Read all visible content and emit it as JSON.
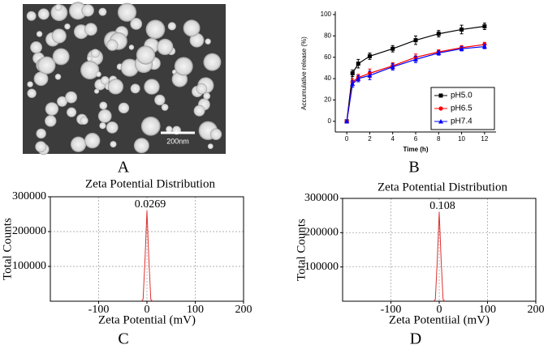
{
  "image": {
    "scale_bar_label": "200nm",
    "panel_label": "A"
  },
  "chart_data": [
    {
      "type": "line",
      "panel_label": "B",
      "y_label": "Accumulative release (%)",
      "x_label": "Time (h)",
      "x": [
        0,
        0.5,
        1,
        2,
        4,
        6,
        8,
        10,
        12
      ],
      "series": [
        {
          "name": "pH5.0",
          "color": "#000000",
          "marker": "square",
          "values": [
            0,
            45,
            54,
            61,
            68,
            76,
            82,
            86,
            89
          ],
          "errors": [
            0,
            3,
            4,
            3,
            3,
            4,
            3,
            4,
            3
          ]
        },
        {
          "name": "pH6.5",
          "color": "#ff0000",
          "marker": "circle",
          "values": [
            0,
            37,
            41,
            45,
            52,
            60,
            65,
            69,
            72
          ],
          "errors": [
            0,
            3,
            3,
            4,
            3,
            3,
            2,
            2,
            2
          ]
        },
        {
          "name": "pH7.4",
          "color": "#0000ff",
          "marker": "triangle",
          "values": [
            0,
            35,
            40,
            43,
            51,
            58,
            64,
            68,
            70
          ],
          "errors": [
            0,
            3,
            3,
            4,
            3,
            3,
            2,
            2,
            2
          ]
        }
      ],
      "xlim": [
        -1,
        13
      ],
      "xticks": [
        0,
        2,
        4,
        6,
        8,
        10,
        12
      ],
      "ylim": [
        -10,
        100
      ],
      "yticks": [
        0,
        20,
        40,
        60,
        80,
        100
      ],
      "grid": false,
      "legend": "lower-right"
    },
    {
      "type": "line",
      "panel_label": "C",
      "title": "Zeta Potential Distribution",
      "y_label": "Total Counts",
      "x_label": "Zeta Potential (mV)",
      "peak_label": "0.0269",
      "x": [
        -12,
        -8,
        -4,
        0,
        4,
        8,
        12
      ],
      "series": [
        {
          "color": "#e03030",
          "values": [
            0,
            5000,
            120000,
            260000,
            120000,
            5000,
            0
          ]
        }
      ],
      "xlim": [
        -200,
        200
      ],
      "xticks": [
        -100,
        0,
        100,
        200
      ],
      "ylim": [
        0,
        300000
      ],
      "yticks": [
        100000,
        200000,
        300000
      ],
      "grid": true
    },
    {
      "type": "line",
      "panel_label": "D",
      "title": "Zeta Potential Distribution",
      "y_label": "Total Counts",
      "x_label": "Zeta Potentiial (mV)",
      "peak_label": "0.108",
      "x": [
        -12,
        -8,
        -4,
        0,
        4,
        8,
        12
      ],
      "series": [
        {
          "color": "#e03030",
          "values": [
            0,
            5000,
            120000,
            260000,
            120000,
            5000,
            0
          ]
        }
      ],
      "xlim": [
        -200,
        200
      ],
      "xticks": [
        -100,
        0,
        100,
        200
      ],
      "ylim": [
        0,
        300000
      ],
      "yticks": [
        100000,
        200000,
        300000
      ],
      "grid": true
    }
  ]
}
